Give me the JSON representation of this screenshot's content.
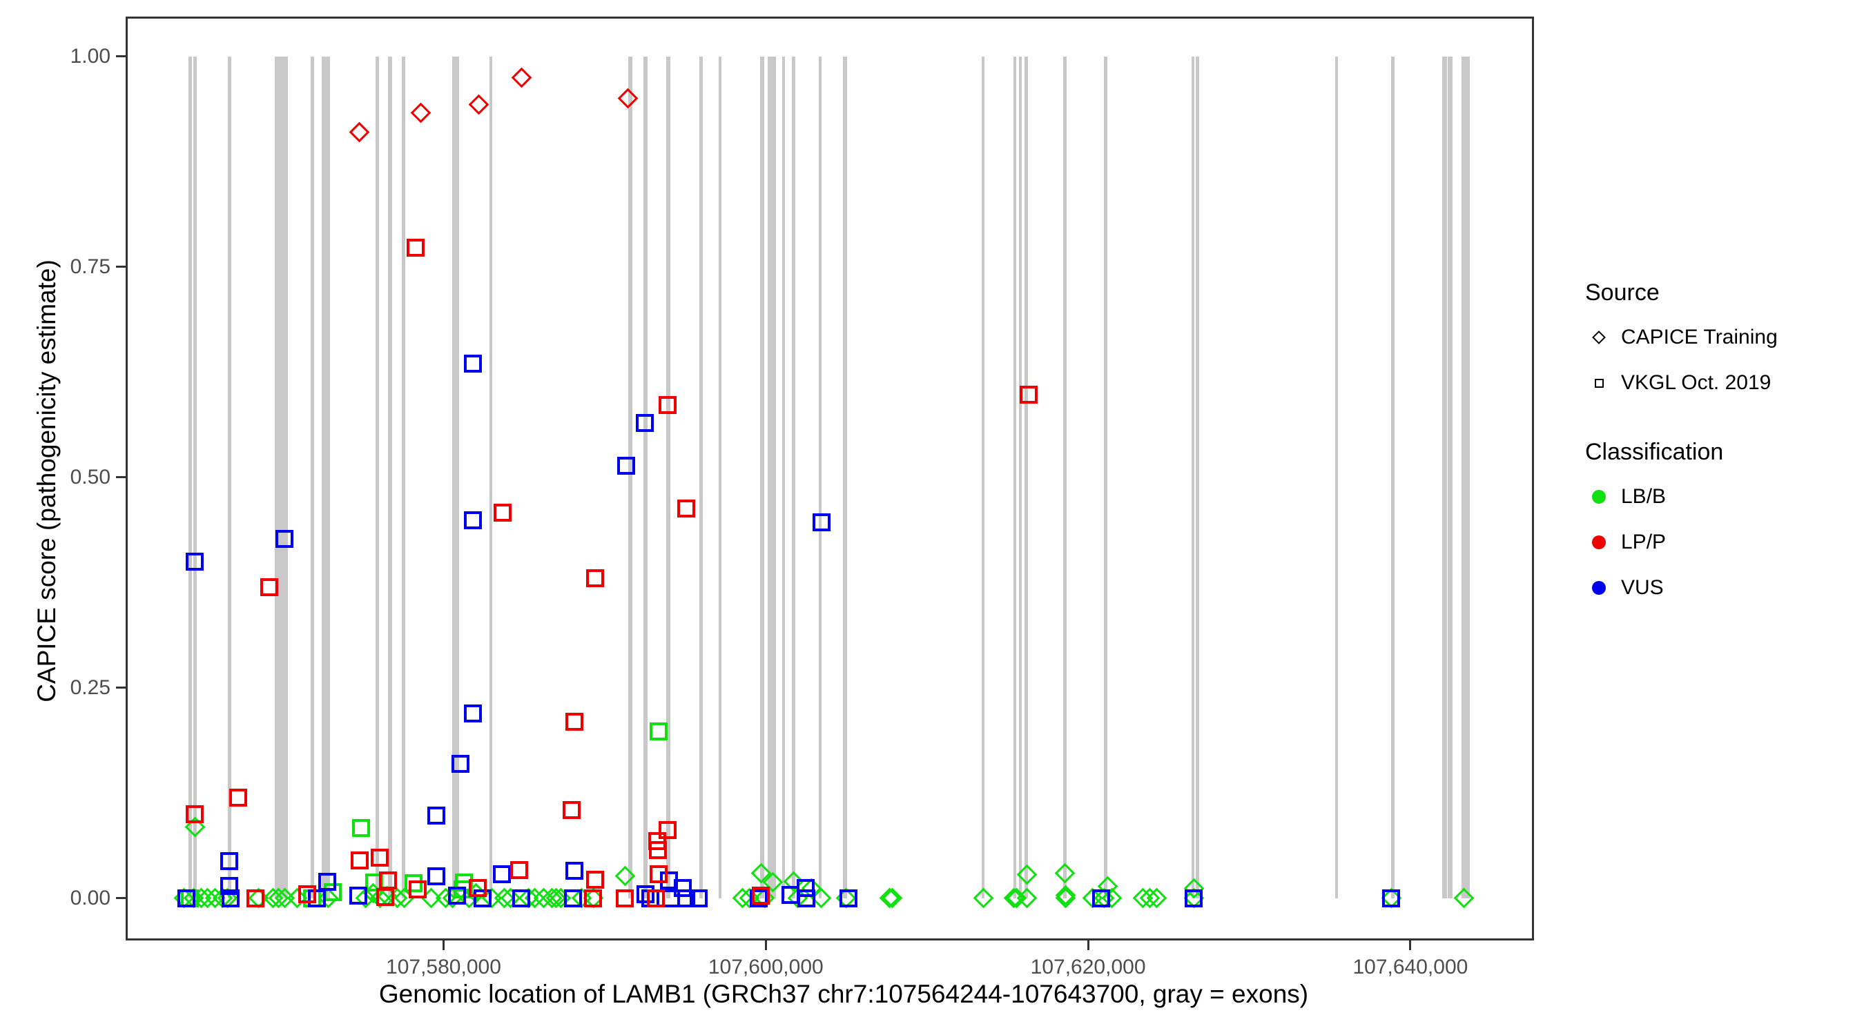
{
  "chart_data": {
    "type": "scatter",
    "xlabel": "Genomic location of LAMB1 (GRCh37 chr7:107564244-107643700, gray = exons)",
    "ylabel": "CAPICE score (pathogenicity estimate)",
    "xlim": [
      107560271,
      107647673
    ],
    "ylim": [
      -0.05,
      1.0475
    ],
    "grid": false,
    "x_ticks": [
      {
        "value": 107580000,
        "label": "107,580,000"
      },
      {
        "value": 107600000,
        "label": "107,600,000"
      },
      {
        "value": 107620000,
        "label": "107,620,000"
      },
      {
        "value": 107640000,
        "label": "107,640,000"
      }
    ],
    "y_ticks": [
      {
        "value": 0.0,
        "label": "0.00"
      },
      {
        "value": 0.25,
        "label": "0.25"
      },
      {
        "value": 0.5,
        "label": "0.50"
      },
      {
        "value": 0.75,
        "label": "0.75"
      },
      {
        "value": 1.0,
        "label": "1.00"
      }
    ],
    "exon_color": "#c8c8c8",
    "exons": [
      {
        "start": 107564170,
        "end": 107564380
      },
      {
        "start": 107564470,
        "end": 107564680
      },
      {
        "start": 107566610,
        "end": 107566830
      },
      {
        "start": 107569530,
        "end": 107570340
      },
      {
        "start": 107571750,
        "end": 107571970
      },
      {
        "start": 107572440,
        "end": 107572960
      },
      {
        "start": 107575780,
        "end": 107576000
      },
      {
        "start": 107576550,
        "end": 107576810
      },
      {
        "start": 107577410,
        "end": 107577630
      },
      {
        "start": 107580540,
        "end": 107580970
      },
      {
        "start": 107582850,
        "end": 107583020
      },
      {
        "start": 107591460,
        "end": 107591720
      },
      {
        "start": 107592400,
        "end": 107592660
      },
      {
        "start": 107593820,
        "end": 107594070
      },
      {
        "start": 107595870,
        "end": 107596090
      },
      {
        "start": 107597070,
        "end": 107597240
      },
      {
        "start": 107599640,
        "end": 107599910
      },
      {
        "start": 107600120,
        "end": 107600630
      },
      {
        "start": 107601020,
        "end": 107601190
      },
      {
        "start": 107601620,
        "end": 107601840
      },
      {
        "start": 107603290,
        "end": 107603460
      },
      {
        "start": 107604790,
        "end": 107605050
      },
      {
        "start": 107613400,
        "end": 107613570
      },
      {
        "start": 107615380,
        "end": 107615550
      },
      {
        "start": 107615720,
        "end": 107615890
      },
      {
        "start": 107616060,
        "end": 107616280
      },
      {
        "start": 107618460,
        "end": 107618670
      },
      {
        "start": 107620990,
        "end": 107621200
      },
      {
        "start": 107626430,
        "end": 107626600
      },
      {
        "start": 107626690,
        "end": 107626900
      },
      {
        "start": 107635340,
        "end": 107635510
      },
      {
        "start": 107638810,
        "end": 107639030
      },
      {
        "start": 107641980,
        "end": 107642280
      },
      {
        "start": 107642320,
        "end": 107642620
      },
      {
        "start": 107643180,
        "end": 107643700
      }
    ],
    "series": [
      {
        "name": "CAPICE Training LB/B",
        "source": "CAPICE Training",
        "classification": "LB/B",
        "shape": "diamond",
        "color": "#10E010",
        "points": [
          [
            107563910,
            0
          ],
          [
            107564470,
            0
          ],
          [
            107564560,
            0.085
          ],
          [
            107564980,
            0
          ],
          [
            107565330,
            0
          ],
          [
            107565840,
            0
          ],
          [
            107566270,
            0
          ],
          [
            107566610,
            0
          ],
          [
            107568500,
            0
          ],
          [
            107569400,
            0
          ],
          [
            107569780,
            0
          ],
          [
            107570130,
            0
          ],
          [
            107570900,
            0
          ],
          [
            107572830,
            0
          ],
          [
            107575140,
            0
          ],
          [
            107575610,
            0.006
          ],
          [
            107576040,
            0
          ],
          [
            107576470,
            0.003
          ],
          [
            107577110,
            0
          ],
          [
            107577540,
            0
          ],
          [
            107579250,
            0
          ],
          [
            107580110,
            0
          ],
          [
            107580540,
            0
          ],
          [
            107581570,
            0
          ],
          [
            107582000,
            0.006
          ],
          [
            107582980,
            0
          ],
          [
            107583750,
            0
          ],
          [
            107584140,
            0
          ],
          [
            107585250,
            0
          ],
          [
            107585640,
            0
          ],
          [
            107586200,
            0
          ],
          [
            107586710,
            0
          ],
          [
            107586970,
            0
          ],
          [
            107587270,
            0
          ],
          [
            107588550,
            0
          ],
          [
            107589280,
            0
          ],
          [
            107591290,
            0.027
          ],
          [
            107598540,
            0
          ],
          [
            107598960,
            0
          ],
          [
            107599690,
            0.03
          ],
          [
            107599910,
            0
          ],
          [
            107600420,
            0.019
          ],
          [
            107601710,
            0.02
          ],
          [
            107601960,
            0
          ],
          [
            107602820,
            0.012
          ],
          [
            107603420,
            0
          ],
          [
            107604960,
            0
          ],
          [
            107607660,
            0
          ],
          [
            107607830,
            0
          ],
          [
            107613490,
            0
          ],
          [
            107615380,
            0
          ],
          [
            107615550,
            0
          ],
          [
            107616190,
            0.028
          ],
          [
            107616190,
            0
          ],
          [
            107618550,
            0.03
          ],
          [
            107618590,
            0.004
          ],
          [
            107618590,
            0
          ],
          [
            107620260,
            0
          ],
          [
            107620990,
            0
          ],
          [
            107621200,
            0.014
          ],
          [
            107621460,
            0
          ],
          [
            107623390,
            0
          ],
          [
            107623820,
            0
          ],
          [
            107624240,
            0
          ],
          [
            107626560,
            0.012
          ],
          [
            107626560,
            0
          ],
          [
            107638810,
            0
          ],
          [
            107643310,
            0
          ]
        ]
      },
      {
        "name": "VKGL LB/B",
        "source": "VKGL Oct. 2019",
        "classification": "LB/B",
        "shape": "square",
        "color": "#10E010",
        "points": [
          [
            107564260,
            0
          ],
          [
            107568330,
            0
          ],
          [
            107571840,
            0
          ],
          [
            107573130,
            0.007
          ],
          [
            107574880,
            0.084
          ],
          [
            107575700,
            0.019
          ],
          [
            107578140,
            0.018
          ],
          [
            107581180,
            0.011
          ],
          [
            107581270,
            0.019
          ],
          [
            107593350,
            0.198
          ]
        ]
      },
      {
        "name": "VKGL VUS",
        "source": "VKGL Oct. 2019",
        "classification": "VUS",
        "shape": "square",
        "color": "#0000EE",
        "points": [
          [
            107564040,
            0
          ],
          [
            107564560,
            0.4
          ],
          [
            107566700,
            0.044
          ],
          [
            107566700,
            0.015
          ],
          [
            107566780,
            0
          ],
          [
            107570130,
            0.427
          ],
          [
            107572140,
            0
          ],
          [
            107572780,
            0.02
          ],
          [
            107574710,
            0.003
          ],
          [
            107579550,
            0.098
          ],
          [
            107579550,
            0.026
          ],
          [
            107580840,
            0.003
          ],
          [
            107581050,
            0.16
          ],
          [
            107581820,
            0.635
          ],
          [
            107581820,
            0.449
          ],
          [
            107581820,
            0.22
          ],
          [
            107582430,
            0
          ],
          [
            107583620,
            0.029
          ],
          [
            107584820,
            0
          ],
          [
            107588040,
            0
          ],
          [
            107588120,
            0.033
          ],
          [
            107591330,
            0.514
          ],
          [
            107592490,
            0.565
          ],
          [
            107592540,
            0.005
          ],
          [
            107592840,
            0
          ],
          [
            107594000,
            0.021
          ],
          [
            107594120,
            0
          ],
          [
            107594850,
            0.012
          ],
          [
            107595070,
            0
          ],
          [
            107595840,
            0
          ],
          [
            107599560,
            0
          ],
          [
            107601540,
            0.004
          ],
          [
            107602480,
            0.012
          ],
          [
            107602520,
            0
          ],
          [
            107603460,
            0.447
          ],
          [
            107605140,
            0
          ],
          [
            107620820,
            0
          ],
          [
            107626560,
            0
          ],
          [
            107638810,
            0
          ]
        ]
      },
      {
        "name": "VKGL LP/P",
        "source": "VKGL Oct. 2019",
        "classification": "LP/P",
        "shape": "square",
        "color": "#EE0000",
        "points": [
          [
            107564560,
            0.1
          ],
          [
            107567260,
            0.12
          ],
          [
            107568330,
            0
          ],
          [
            107569180,
            0.37
          ],
          [
            107571540,
            0.005
          ],
          [
            107574790,
            0.045
          ],
          [
            107576040,
            0.048
          ],
          [
            107576380,
            0.002
          ],
          [
            107576550,
            0.021
          ],
          [
            107578270,
            0.773
          ],
          [
            107578400,
            0.011
          ],
          [
            107582130,
            0.012
          ],
          [
            107583660,
            0.458
          ],
          [
            107584700,
            0.034
          ],
          [
            107587950,
            0.105
          ],
          [
            107588120,
            0.21
          ],
          [
            107589280,
            0
          ],
          [
            107589410,
            0.38
          ],
          [
            107589410,
            0.022
          ],
          [
            107591250,
            0
          ],
          [
            107593180,
            0
          ],
          [
            107593260,
            0.068
          ],
          [
            107593300,
            0.057
          ],
          [
            107593350,
            0.029
          ],
          [
            107593900,
            0.586
          ],
          [
            107593900,
            0.081
          ],
          [
            107595060,
            0.463
          ],
          [
            107599690,
            0.003
          ],
          [
            107616310,
            0.598
          ]
        ]
      },
      {
        "name": "CAPICE Training LP/P",
        "source": "CAPICE Training",
        "classification": "LP/P",
        "shape": "diamond",
        "color": "#EE0000",
        "points": [
          [
            107574790,
            0.91
          ],
          [
            107578570,
            0.933
          ],
          [
            107582170,
            0.943
          ],
          [
            107584860,
            0.975
          ],
          [
            107591460,
            0.95
          ]
        ]
      }
    ]
  },
  "legend": {
    "source_title": "Source",
    "source_items": [
      {
        "label": "CAPICE Training",
        "glyph": "diamond"
      },
      {
        "label": "VKGL Oct. 2019",
        "glyph": "square"
      }
    ],
    "classification_title": "Classification",
    "classification_items": [
      {
        "label": "LB/B",
        "color": "#10E010"
      },
      {
        "label": "LP/P",
        "color": "#EE0000"
      },
      {
        "label": "VUS",
        "color": "#0000EE"
      }
    ]
  }
}
